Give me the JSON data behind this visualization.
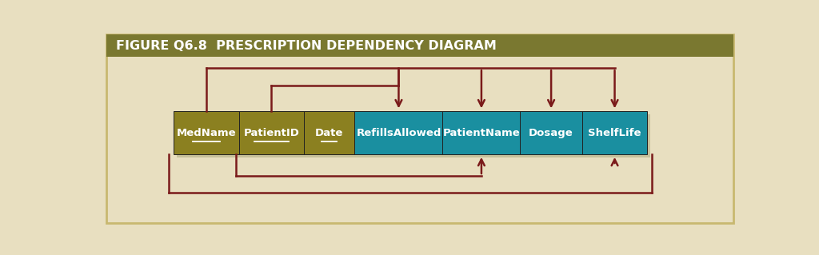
{
  "title": "FIGURE Q6.8  PRESCRIPTION DEPENDENCY DIAGRAM",
  "bg_color": "#e8dfc0",
  "title_bg": "#7a7830",
  "title_color": "#ffffff",
  "gold_color": "#8b8020",
  "teal_color": "#1a8fa0",
  "arrow_color": "#7a1a1a",
  "shadow_color": "#888855",
  "fields": [
    "MedName",
    "PatientID",
    "Date",
    "RefillsAllowed",
    "PatientName",
    "Dosage",
    "ShelfLife"
  ],
  "field_types": [
    "gold",
    "gold",
    "gold",
    "teal",
    "teal",
    "teal",
    "teal"
  ],
  "underlined": [
    true,
    true,
    true,
    false,
    false,
    false,
    false
  ],
  "widths": [
    1.05,
    1.05,
    0.82,
    1.42,
    1.25,
    1.0,
    1.05
  ]
}
